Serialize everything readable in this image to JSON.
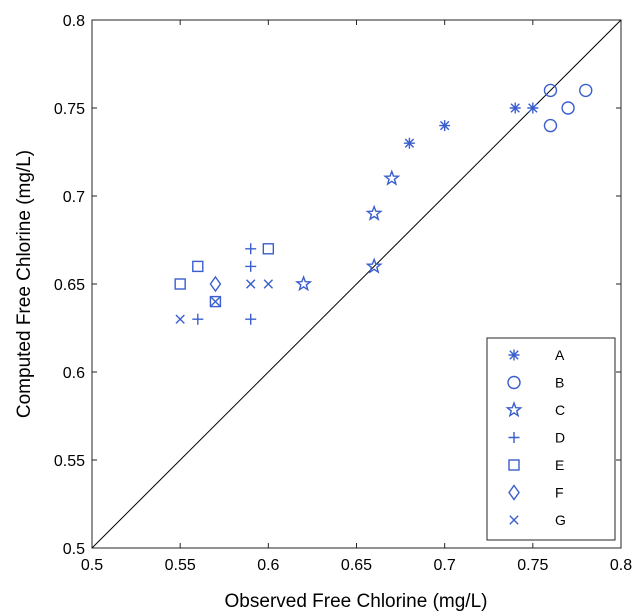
{
  "chart_data": {
    "type": "scatter",
    "xlabel": "Observed Free Chlorine (mg/L)",
    "ylabel": "Computed Free Chlorine (mg/L)",
    "xlim": [
      0.5,
      0.8
    ],
    "ylim": [
      0.5,
      0.8
    ],
    "x_ticks": [
      "0.5",
      "0.55",
      "0.6",
      "0.65",
      "0.7",
      "0.75",
      "0.8"
    ],
    "y_ticks": [
      "0.5",
      "0.55",
      "0.6",
      "0.65",
      "0.7",
      "0.75",
      "0.8"
    ],
    "reference_line": "y = x",
    "grid": false,
    "legend_position": "bottom-right",
    "marker_color": "#3a5fcd",
    "series": [
      {
        "name": "A",
        "marker": "asterisk",
        "points": [
          [
            0.68,
            0.73
          ],
          [
            0.7,
            0.74
          ],
          [
            0.74,
            0.75
          ],
          [
            0.75,
            0.75
          ]
        ]
      },
      {
        "name": "B",
        "marker": "circle",
        "points": [
          [
            0.76,
            0.76
          ],
          [
            0.76,
            0.74
          ],
          [
            0.77,
            0.75
          ],
          [
            0.78,
            0.76
          ]
        ]
      },
      {
        "name": "C",
        "marker": "star",
        "points": [
          [
            0.62,
            0.65
          ],
          [
            0.66,
            0.66
          ],
          [
            0.66,
            0.69
          ],
          [
            0.67,
            0.71
          ]
        ]
      },
      {
        "name": "D",
        "marker": "plus",
        "points": [
          [
            0.56,
            0.63
          ],
          [
            0.59,
            0.63
          ],
          [
            0.59,
            0.66
          ],
          [
            0.59,
            0.67
          ]
        ]
      },
      {
        "name": "E",
        "marker": "square",
        "points": [
          [
            0.55,
            0.65
          ],
          [
            0.56,
            0.66
          ],
          [
            0.57,
            0.64
          ],
          [
            0.6,
            0.67
          ]
        ]
      },
      {
        "name": "F",
        "marker": "diamond",
        "points": [
          [
            0.57,
            0.65
          ]
        ]
      },
      {
        "name": "G",
        "marker": "x",
        "points": [
          [
            0.55,
            0.63
          ],
          [
            0.57,
            0.64
          ],
          [
            0.59,
            0.65
          ],
          [
            0.6,
            0.65
          ]
        ]
      }
    ]
  }
}
